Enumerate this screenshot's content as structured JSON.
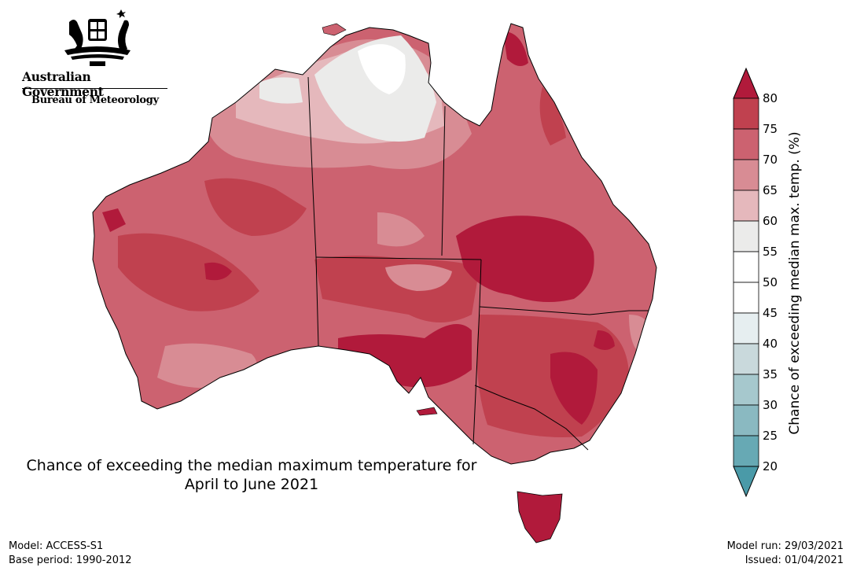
{
  "branding": {
    "government": "Australian Government",
    "agency": "Bureau of Meteorology"
  },
  "map": {
    "title_line1": "Chance of exceeding the median maximum temperature for",
    "title_line2": "April to June 2021"
  },
  "legend": {
    "label": "Chance of exceeding median max. temp. (%)",
    "ticks": [
      "80",
      "75",
      "70",
      "65",
      "60",
      "55",
      "50",
      "45",
      "40",
      "35",
      "30",
      "25",
      "20"
    ],
    "bands": [
      {
        "from": 80,
        "color": "#b11a3b"
      },
      {
        "from": 75,
        "to": 80,
        "color": "#c0414f"
      },
      {
        "from": 70,
        "to": 75,
        "color": "#cc6270"
      },
      {
        "from": 65,
        "to": 70,
        "color": "#d88c94"
      },
      {
        "from": 60,
        "to": 65,
        "color": "#e5b8bc"
      },
      {
        "from": 55,
        "to": 60,
        "color": "#ebebea"
      },
      {
        "from": 50,
        "to": 55,
        "color": "#ffffff"
      },
      {
        "from": 45,
        "to": 50,
        "color": "#ffffff"
      },
      {
        "from": 40,
        "to": 45,
        "color": "#e6eef0"
      },
      {
        "from": 35,
        "to": 40,
        "color": "#c9d9dc"
      },
      {
        "from": 30,
        "to": 35,
        "color": "#a6c8cd"
      },
      {
        "from": 25,
        "to": 30,
        "color": "#8ab9c1"
      },
      {
        "from": 20,
        "to": 25,
        "color": "#67a9b4"
      },
      {
        "to": 20,
        "color": "#4a9aa8"
      }
    ]
  },
  "footer": {
    "model": "Model: ACCESS-S1",
    "base_period": "Base period: 1990-2012",
    "model_run": "Model run: 29/03/2021",
    "issued": "Issued: 01/04/2021"
  }
}
